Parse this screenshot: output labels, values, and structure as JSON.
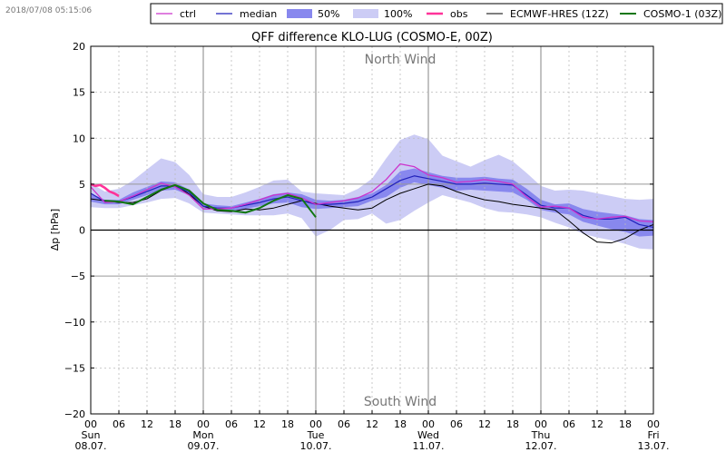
{
  "timestamp": "2018/07/08 05:15:06",
  "colors": {
    "ctrl": "#cc33cc",
    "median": "#2222bb",
    "band50": "#8888ee",
    "band100": "#ccccf5",
    "obs": "#ff3399",
    "ecmwf": "#000000",
    "cosmo1": "#117711"
  },
  "chart_data": {
    "type": "line",
    "title": "QFF difference KLO-LUG (COSMO-E, 00Z)",
    "xlabel": "",
    "ylabel": "Δp [hPa]",
    "x_unit": "hours since Sun 08.07. 00Z",
    "xlim": [
      0,
      120
    ],
    "ylim": [
      -20,
      20
    ],
    "yticks": [
      -20,
      -15,
      -10,
      -5,
      0,
      5,
      10,
      15,
      20
    ],
    "xticks": [
      {
        "h": 0,
        "label": "00",
        "day": "Sun",
        "date": "08.07."
      },
      {
        "h": 6,
        "label": "06"
      },
      {
        "h": 12,
        "label": "12"
      },
      {
        "h": 18,
        "label": "18"
      },
      {
        "h": 24,
        "label": "00",
        "day": "Mon",
        "date": "09.07."
      },
      {
        "h": 30,
        "label": "06"
      },
      {
        "h": 36,
        "label": "12"
      },
      {
        "h": 42,
        "label": "18"
      },
      {
        "h": 48,
        "label": "00",
        "day": "Tue",
        "date": "10.07."
      },
      {
        "h": 54,
        "label": "06"
      },
      {
        "h": 60,
        "label": "12"
      },
      {
        "h": 66,
        "label": "18"
      },
      {
        "h": 72,
        "label": "00",
        "day": "Wed",
        "date": "11.07."
      },
      {
        "h": 78,
        "label": "06"
      },
      {
        "h": 84,
        "label": "12"
      },
      {
        "h": 90,
        "label": "18"
      },
      {
        "h": 96,
        "label": "00",
        "day": "Thu",
        "date": "12.07."
      },
      {
        "h": 102,
        "label": "06"
      },
      {
        "h": 108,
        "label": "12"
      },
      {
        "h": 114,
        "label": "18"
      },
      {
        "h": 120,
        "label": "00",
        "day": "Fri",
        "date": "13.07."
      }
    ],
    "annotations": [
      {
        "text": "North Wind",
        "x": 66,
        "y": 18.6
      },
      {
        "text": "South Wind",
        "x": 66,
        "y": -18.6
      }
    ],
    "legend_position": "top",
    "legend": [
      "ctrl",
      "median",
      "50%",
      "100%",
      "obs",
      "ECMWF-HRES (12Z)",
      "COSMO-1 (03Z)"
    ],
    "bands": [
      {
        "name": "100%",
        "x": [
          0,
          3,
          6,
          9,
          12,
          15,
          18,
          21,
          24,
          27,
          30,
          33,
          36,
          39,
          42,
          45,
          48,
          51,
          54,
          57,
          60,
          63,
          66,
          69,
          72,
          75,
          78,
          81,
          84,
          87,
          90,
          93,
          96,
          99,
          102,
          105,
          108,
          111,
          114,
          117,
          120
        ],
        "lo": [
          2.5,
          2.4,
          2.4,
          2.7,
          3.0,
          3.4,
          3.5,
          2.9,
          1.9,
          1.8,
          1.7,
          1.6,
          1.6,
          1.6,
          1.8,
          1.3,
          -0.7,
          0.0,
          1.1,
          1.2,
          1.8,
          0.7,
          1.1,
          2.1,
          3.0,
          3.8,
          3.4,
          3.0,
          2.4,
          2.0,
          1.9,
          1.7,
          1.4,
          0.8,
          0.3,
          -0.4,
          -0.8,
          -1.1,
          -1.5,
          -2.0,
          -2.1
        ],
        "hi": [
          5.1,
          4.2,
          4.5,
          5.4,
          6.6,
          7.8,
          7.4,
          6.0,
          3.9,
          3.6,
          3.6,
          4.1,
          4.7,
          5.4,
          5.5,
          4.2,
          4.0,
          3.9,
          3.8,
          4.5,
          5.6,
          7.8,
          9.8,
          10.4,
          9.9,
          8.1,
          7.5,
          6.9,
          7.6,
          8.2,
          7.5,
          6.2,
          4.8,
          4.3,
          4.4,
          4.3,
          4.0,
          3.7,
          3.4,
          3.3,
          3.4
        ]
      },
      {
        "name": "50%",
        "x": [
          0,
          3,
          6,
          9,
          12,
          15,
          18,
          21,
          24,
          27,
          30,
          33,
          36,
          39,
          42,
          45,
          48,
          51,
          54,
          57,
          60,
          63,
          66,
          69,
          72,
          75,
          78,
          81,
          84,
          87,
          90,
          93,
          96,
          99,
          102,
          105,
          108,
          111,
          114,
          117,
          120
        ],
        "lo": [
          3.1,
          2.8,
          2.8,
          3.3,
          3.8,
          4.3,
          4.4,
          3.8,
          2.4,
          2.2,
          2.1,
          2.3,
          2.6,
          2.9,
          3.0,
          2.5,
          2.3,
          2.4,
          2.5,
          2.6,
          3.2,
          3.6,
          4.6,
          5.2,
          4.9,
          4.6,
          4.3,
          4.4,
          4.3,
          4.2,
          4.1,
          3.3,
          2.2,
          1.9,
          1.7,
          0.9,
          0.5,
          0.1,
          -0.2,
          -0.7,
          -0.6
        ],
        "hi": [
          4.0,
          3.3,
          3.3,
          4.1,
          4.7,
          5.3,
          5.2,
          4.4,
          2.9,
          2.7,
          2.6,
          3.0,
          3.4,
          3.9,
          4.1,
          3.9,
          3.3,
          3.2,
          3.3,
          3.6,
          4.0,
          4.9,
          6.4,
          6.7,
          6.3,
          5.9,
          5.7,
          5.7,
          5.8,
          5.6,
          5.5,
          4.5,
          3.3,
          2.8,
          2.9,
          2.3,
          2.0,
          1.8,
          1.6,
          1.2,
          1.1
        ]
      }
    ],
    "series": [
      {
        "name": "ctrl",
        "x": [
          0,
          3,
          6,
          9,
          12,
          15,
          18,
          21,
          24,
          27,
          30,
          33,
          36,
          39,
          42,
          45,
          48,
          51,
          54,
          57,
          60,
          63,
          66,
          69,
          72,
          75,
          78,
          81,
          84,
          87,
          90,
          93,
          96,
          99,
          102,
          105,
          108,
          111,
          114,
          117,
          120
        ],
        "y": [
          4.7,
          3.0,
          3.1,
          3.7,
          4.4,
          5.1,
          4.7,
          3.8,
          2.3,
          2.3,
          2.4,
          2.8,
          3.3,
          3.8,
          4.0,
          3.5,
          2.8,
          3.0,
          3.2,
          3.5,
          4.2,
          5.5,
          7.2,
          6.9,
          6.0,
          5.7,
          5.2,
          5.3,
          5.5,
          5.3,
          5.0,
          3.6,
          2.5,
          2.6,
          2.4,
          1.4,
          1.2,
          1.4,
          1.5,
          1.0,
          0.9
        ]
      },
      {
        "name": "median",
        "x": [
          0,
          3,
          6,
          9,
          12,
          15,
          18,
          21,
          24,
          27,
          30,
          33,
          36,
          39,
          42,
          45,
          48,
          51,
          54,
          57,
          60,
          63,
          66,
          69,
          72,
          75,
          78,
          81,
          84,
          87,
          90,
          93,
          96,
          99,
          102,
          105,
          108,
          111,
          114,
          117,
          120
        ],
        "y": [
          4.0,
          3.1,
          3.1,
          3.6,
          4.2,
          4.8,
          4.8,
          4.1,
          2.6,
          2.4,
          2.4,
          2.7,
          3.0,
          3.4,
          3.6,
          3.2,
          2.8,
          2.8,
          2.9,
          3.1,
          3.6,
          4.5,
          5.4,
          5.9,
          5.6,
          5.3,
          5.0,
          5.0,
          5.1,
          5.0,
          4.9,
          3.8,
          2.7,
          2.4,
          2.4,
          1.6,
          1.2,
          1.2,
          1.4,
          0.6,
          0.3
        ]
      },
      {
        "name": "obs",
        "x": [
          0,
          1,
          2,
          3,
          4,
          5,
          6
        ],
        "y": [
          5.0,
          4.8,
          4.9,
          4.6,
          4.2,
          4.0,
          3.7
        ]
      },
      {
        "name": "ECMWF-HRES (12Z)",
        "x": [
          0,
          3,
          6,
          9,
          12,
          15,
          18,
          21,
          24,
          27,
          30,
          33,
          36,
          39,
          42,
          45,
          48,
          51,
          54,
          57,
          60,
          63,
          66,
          69,
          72,
          75,
          78,
          81,
          84,
          87,
          90,
          93,
          96,
          99,
          102,
          105,
          108,
          111,
          114,
          117,
          120
        ],
        "y": [
          3.4,
          3.2,
          3.0,
          3.0,
          3.4,
          4.3,
          4.9,
          3.9,
          2.6,
          2.1,
          2.0,
          2.3,
          2.2,
          2.4,
          2.8,
          3.2,
          2.9,
          2.6,
          2.4,
          2.2,
          2.4,
          3.3,
          4.0,
          4.5,
          5.0,
          4.8,
          4.2,
          3.7,
          3.3,
          3.1,
          2.8,
          2.6,
          2.4,
          2.2,
          1.0,
          -0.3,
          -1.3,
          -1.4,
          -0.9,
          0.0,
          0.6
        ]
      },
      {
        "name": "COSMO-1 (03Z)",
        "x": [
          3,
          6,
          9,
          12,
          15,
          18,
          21,
          24,
          27,
          30,
          33,
          36,
          39,
          42,
          45,
          48
        ],
        "y": [
          3.2,
          3.1,
          2.8,
          3.6,
          4.4,
          4.9,
          4.3,
          2.9,
          2.2,
          2.1,
          1.9,
          2.4,
          3.2,
          3.8,
          3.4,
          1.4
        ]
      }
    ]
  }
}
